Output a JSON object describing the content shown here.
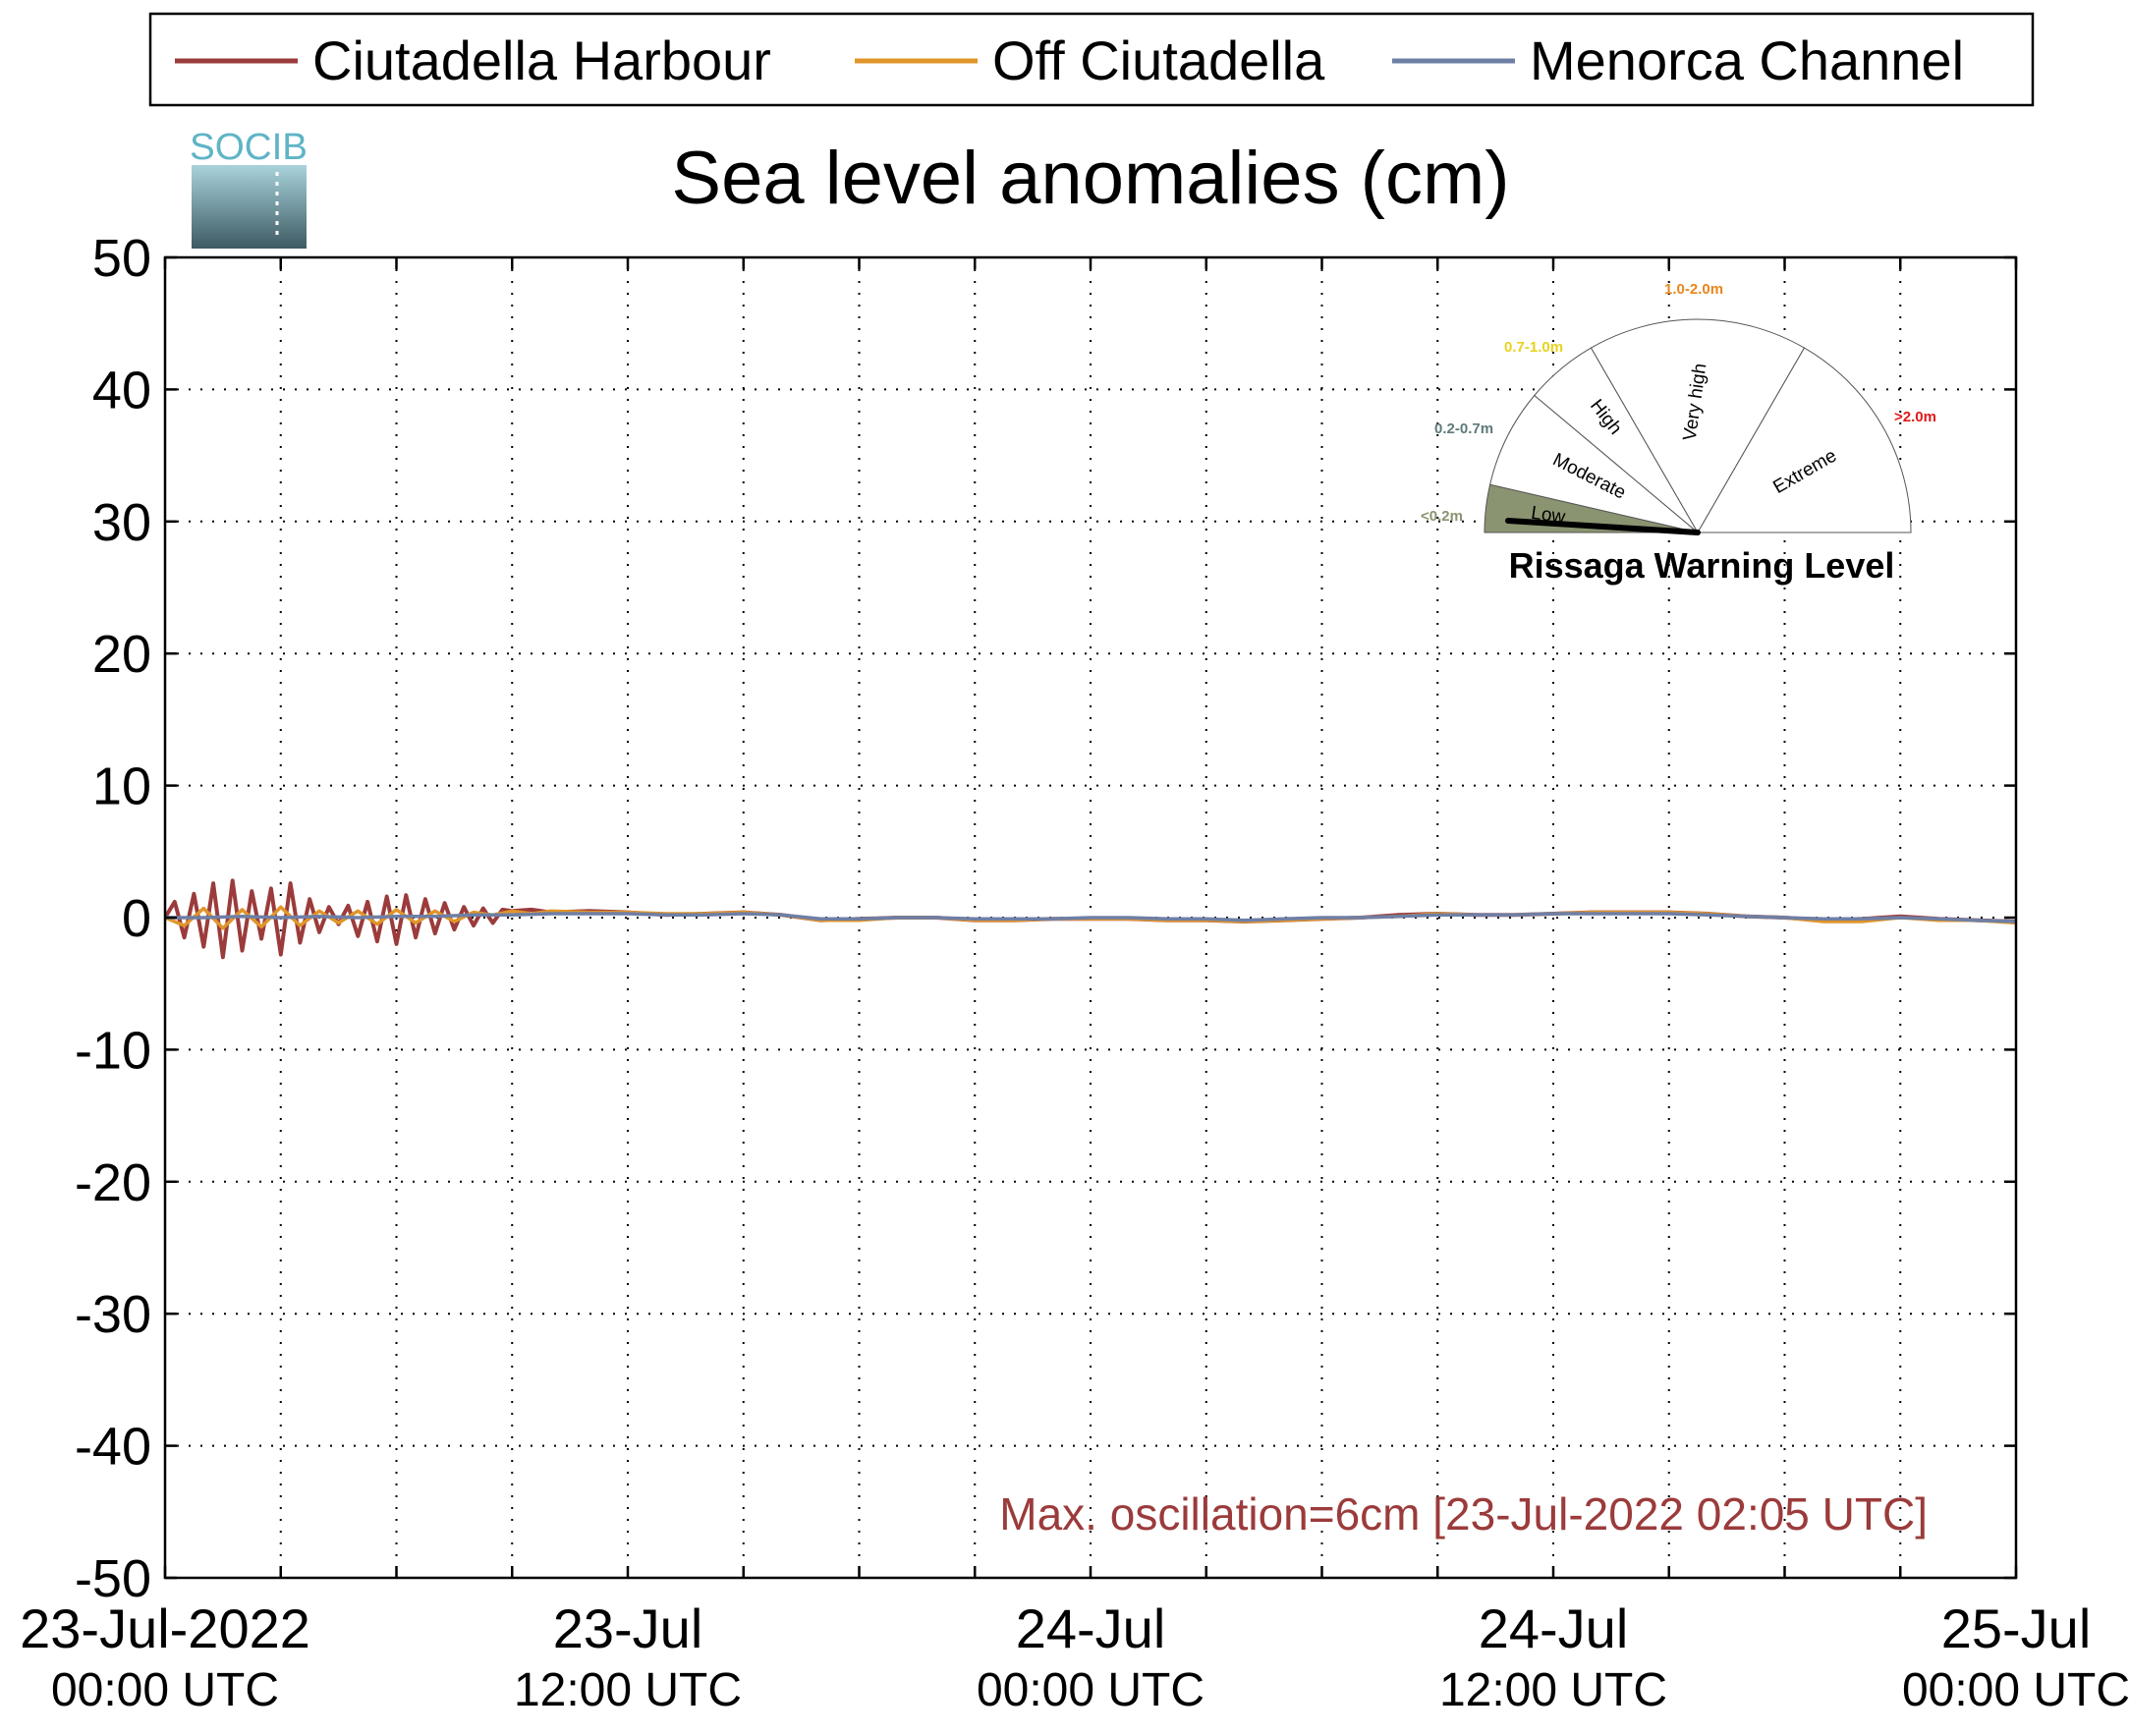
{
  "chart_data": {
    "type": "line",
    "title": "Sea level anomalies (cm)",
    "xlabel": "",
    "ylabel": "",
    "ylim": [
      -50,
      50
    ],
    "yticks": [
      50,
      40,
      30,
      20,
      10,
      0,
      -10,
      -20,
      -30,
      -40,
      -50
    ],
    "y_tick_labels": [
      "50",
      "40",
      "30",
      "20",
      "10",
      "0",
      "-10",
      "-20",
      "-30",
      "-40",
      "-50"
    ],
    "x_range_hours": [
      0,
      48
    ],
    "x_grid_every_hours": 3,
    "x_tick_labels": [
      {
        "hour": 0,
        "date": "23-Jul-2022",
        "time": "00:00 UTC"
      },
      {
        "hour": 12,
        "date": "23-Jul",
        "time": "12:00 UTC"
      },
      {
        "hour": 24,
        "date": "24-Jul",
        "time": "00:00 UTC"
      },
      {
        "hour": 36,
        "date": "24-Jul",
        "time": "12:00 UTC"
      },
      {
        "hour": 48,
        "date": "25-Jul",
        "time": "00:00 UTC"
      }
    ],
    "grid": true,
    "legend_position": "top",
    "series": [
      {
        "name": "Ciutadella Harbour",
        "color": "#9b3b3b",
        "x": [
          0,
          0.25,
          0.5,
          0.75,
          1,
          1.25,
          1.5,
          1.75,
          2,
          2.25,
          2.5,
          2.75,
          3,
          3.25,
          3.5,
          3.75,
          4,
          4.25,
          4.5,
          4.75,
          5,
          5.25,
          5.5,
          5.75,
          6,
          6.25,
          6.5,
          6.75,
          7,
          7.25,
          7.5,
          7.75,
          8,
          8.25,
          8.5,
          8.75,
          9,
          9.5,
          10,
          11,
          12,
          13,
          14,
          15,
          16,
          17,
          18,
          19,
          20,
          21,
          22,
          23,
          24,
          25,
          26,
          27,
          28,
          29,
          30,
          31,
          32,
          33,
          34,
          35,
          36,
          37,
          38,
          39,
          40,
          41,
          42,
          43,
          44,
          45,
          46,
          47,
          48
        ],
        "values": [
          0,
          1.2,
          -1.5,
          1.8,
          -2.2,
          2.6,
          -3,
          2.8,
          -2.5,
          2,
          -1.6,
          2.2,
          -2.8,
          2.6,
          -1.9,
          1.4,
          -1.1,
          0.8,
          -0.5,
          0.9,
          -1.4,
          1.2,
          -1.8,
          1.6,
          -2,
          1.7,
          -1.5,
          1.4,
          -1.2,
          1.1,
          -0.9,
          0.8,
          -0.6,
          0.7,
          -0.4,
          0.6,
          0.5,
          0.6,
          0.4,
          0.5,
          0.4,
          0.2,
          0.3,
          0.4,
          0.2,
          -0.2,
          -0.1,
          0,
          0,
          -0.2,
          -0.2,
          -0.1,
          -0.1,
          -0.1,
          -0.2,
          -0.2,
          -0.3,
          -0.2,
          -0.1,
          0,
          0.2,
          0.3,
          0.2,
          0.2,
          0.3,
          0.4,
          0.4,
          0.4,
          0.3,
          0.1,
          0,
          -0.2,
          -0.1,
          0.1,
          -0.1,
          -0.2,
          -0.3
        ]
      },
      {
        "name": "Off Ciutadella",
        "color": "#e0952a",
        "x": [
          0,
          0.5,
          1,
          1.5,
          2,
          2.5,
          3,
          3.5,
          4,
          4.5,
          5,
          5.5,
          6,
          6.5,
          7,
          7.5,
          8,
          8.5,
          9,
          9.5,
          10,
          11,
          12,
          13,
          14,
          15,
          16,
          17,
          18,
          19,
          20,
          21,
          22,
          23,
          24,
          25,
          26,
          27,
          28,
          29,
          30,
          31,
          32,
          33,
          34,
          35,
          36,
          37,
          38,
          39,
          40,
          41,
          42,
          43,
          44,
          45,
          46,
          47,
          48
        ],
        "values": [
          0,
          -0.6,
          0.7,
          -0.8,
          0.6,
          -0.7,
          0.8,
          -0.6,
          0.5,
          -0.4,
          0.5,
          -0.5,
          0.6,
          -0.4,
          0.5,
          -0.3,
          0.4,
          0.2,
          0.5,
          0.3,
          0.5,
          0.4,
          0.4,
          0.3,
          0.3,
          0.4,
          0.2,
          -0.2,
          -0.2,
          0,
          0,
          -0.2,
          -0.2,
          -0.1,
          -0.1,
          -0.1,
          -0.2,
          -0.2,
          -0.3,
          -0.2,
          -0.1,
          0,
          0.1,
          0.3,
          0.2,
          0.2,
          0.3,
          0.4,
          0.4,
          0.4,
          0.3,
          0.1,
          0,
          -0.3,
          -0.3,
          0,
          -0.2,
          -0.2,
          -0.4
        ]
      },
      {
        "name": "Menorca Channel",
        "color": "#6e7fa6",
        "x": [
          0,
          1,
          2,
          3,
          4,
          5,
          6,
          7,
          8,
          9,
          10,
          11,
          12,
          13,
          14,
          15,
          16,
          17,
          18,
          19,
          20,
          21,
          22,
          23,
          24,
          25,
          26,
          27,
          28,
          29,
          30,
          31,
          32,
          33,
          34,
          35,
          36,
          37,
          38,
          39,
          40,
          41,
          42,
          43,
          44,
          45,
          46,
          47,
          48
        ],
        "values": [
          0,
          0,
          0.1,
          0,
          0.1,
          0,
          0.1,
          0.1,
          0.2,
          0.2,
          0.3,
          0.3,
          0.3,
          0.2,
          0.2,
          0.3,
          0.2,
          -0.1,
          -0.1,
          0,
          0,
          -0.1,
          -0.1,
          -0.1,
          0,
          0,
          -0.1,
          -0.1,
          -0.2,
          -0.1,
          0,
          0,
          0.1,
          0.2,
          0.2,
          0.2,
          0.3,
          0.3,
          0.3,
          0.3,
          0.2,
          0.1,
          0,
          -0.1,
          -0.1,
          0,
          -0.1,
          -0.2,
          -0.3
        ]
      }
    ],
    "annotation": "Max. oscillation=6cm [23-Jul-2022 02:05 UTC]",
    "annotation_color": "#9b3b3b",
    "logo_text": "SOCIB",
    "gauge": {
      "title": "Rissaga Warning Level",
      "current_level": "Low",
      "current_fill": "#8a9470",
      "sectors": [
        {
          "label": "Low",
          "range": "<0.2m",
          "range_color": "#8a9470"
        },
        {
          "label": "Moderate",
          "range": "0.2-0.7m",
          "range_color": "#5f7a7a"
        },
        {
          "label": "High",
          "range": "0.7-1.0m",
          "range_color": "#e8d21c"
        },
        {
          "label": "Very high",
          "range": "1.0-2.0m",
          "range_color": "#e8861c"
        },
        {
          "label": "Extreme",
          "range": ">2.0m",
          "range_color": "#e01818"
        }
      ]
    }
  }
}
